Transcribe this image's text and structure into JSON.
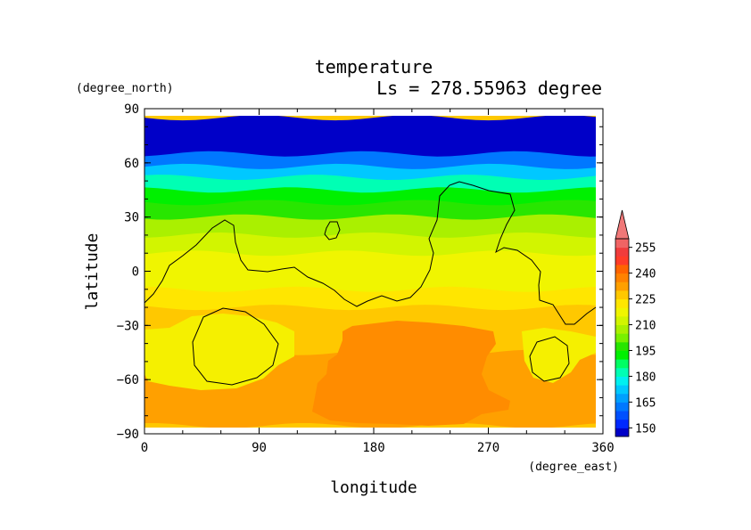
{
  "chart_data": {
    "type": "heatmap",
    "variable": "temperature",
    "title": "temperature",
    "subtitle": "Ls = 278.55963 degree",
    "xlabel": "longitude",
    "ylabel": "latitude",
    "xunits": "(degree_east)",
    "yunits": "(degree_north)",
    "xlim": [
      0,
      360
    ],
    "ylim": [
      -90,
      90
    ],
    "xticks": [
      0,
      90,
      180,
      270,
      360
    ],
    "yticks": [
      90,
      60,
      30,
      0,
      -30,
      -60,
      -90
    ],
    "colorbar": {
      "levels": [
        145,
        150,
        155,
        160,
        165,
        170,
        175,
        180,
        185,
        190,
        195,
        200,
        205,
        210,
        215,
        220,
        225,
        230,
        235,
        240,
        245,
        250,
        255,
        260
      ],
      "tick_labels": [
        150,
        165,
        180,
        195,
        210,
        225,
        240,
        255
      ],
      "colors": [
        "#0000c8",
        "#0028ff",
        "#0050ff",
        "#0078ff",
        "#00a0ff",
        "#00c8ff",
        "#00f0f0",
        "#00ffb4",
        "#00ff64",
        "#00f000",
        "#28e600",
        "#78f000",
        "#aaf000",
        "#d2f500",
        "#f0f500",
        "#ffe600",
        "#ffc800",
        "#ffa000",
        "#ff8200",
        "#ff6400",
        "#ff3c28",
        "#f03c3c",
        "#f06464"
      ],
      "extend_color": "#f07878"
    },
    "zonal_temperature_k": [
      {
        "lat": 85,
        "t": 145
      },
      {
        "lat": 75,
        "t": 147
      },
      {
        "lat": 65,
        "t": 152
      },
      {
        "lat": 58,
        "t": 168
      },
      {
        "lat": 52,
        "t": 178
      },
      {
        "lat": 45,
        "t": 186
      },
      {
        "lat": 38,
        "t": 194
      },
      {
        "lat": 30,
        "t": 204
      },
      {
        "lat": 20,
        "t": 210
      },
      {
        "lat": 10,
        "t": 214
      },
      {
        "lat": 0,
        "t": 217
      },
      {
        "lat": -10,
        "t": 220
      },
      {
        "lat": -20,
        "t": 224
      },
      {
        "lat": -30,
        "t": 226
      },
      {
        "lat": -45,
        "t": 229
      },
      {
        "lat": -60,
        "t": 231
      },
      {
        "lat": -75,
        "t": 233
      },
      {
        "lat": -85,
        "t": 233
      }
    ],
    "warm_region_k": {
      "lon": [
        120,
        280
      ],
      "lat": [
        -85,
        -35
      ],
      "t": 236
    },
    "topography_contour": "Mars dichotomy boundary (thin black line)"
  }
}
